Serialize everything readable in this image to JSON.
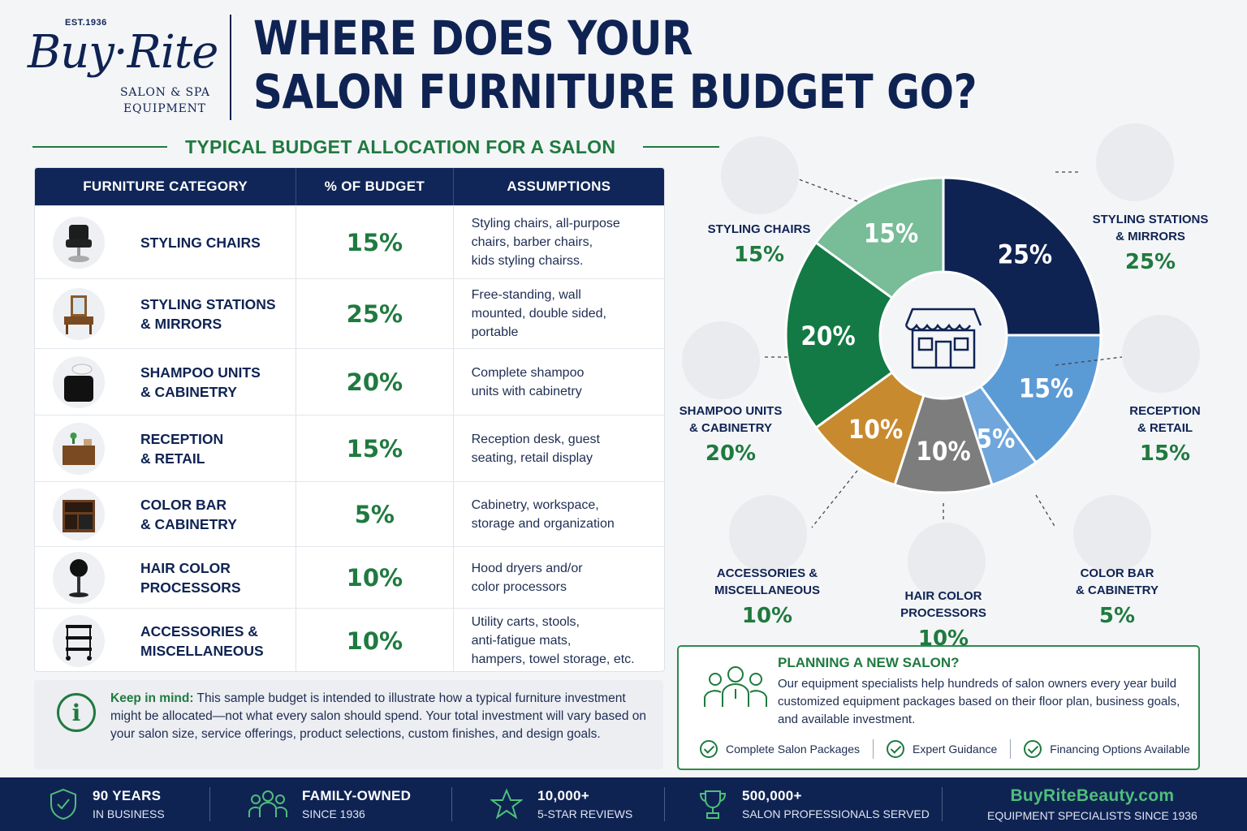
{
  "logo": {
    "est": "EST.1936",
    "brand": "Buy·Rite",
    "line1": "SALON & SPA",
    "line2": "EQUIPMENT"
  },
  "headline": {
    "line1": "WHERE DOES YOUR",
    "line2": "SALON FURNITURE BUDGET GO?"
  },
  "subheading": "TYPICAL BUDGET ALLOCATION FOR A SALON",
  "table": {
    "headers": [
      "FURNITURE CATEGORY",
      "% OF BUDGET",
      "ASSUMPTIONS"
    ],
    "rows": [
      {
        "category": "STYLING CHAIRS",
        "percent": "15%",
        "assumptions": "Styling chairs, all-purpose\nchairs, barber chairs,\nkids styling chairss.",
        "icon": "styling-chair-icon"
      },
      {
        "category": "STYLING STATIONS\n& MIRRORS",
        "percent": "25%",
        "assumptions": "Free-standing, wall\nmounted, double sided,\nportable",
        "icon": "styling-station-icon"
      },
      {
        "category": "SHAMPOO UNITS\n& CABINETRY",
        "percent": "20%",
        "assumptions": "Complete shampoo\nunits with cabinetry",
        "icon": "shampoo-unit-icon"
      },
      {
        "category": "RECEPTION\n& RETAIL",
        "percent": "15%",
        "assumptions": "Reception desk, guest\nseating, retail display",
        "icon": "reception-desk-icon"
      },
      {
        "category": "COLOR BAR\n& CABINETRY",
        "percent": "5%",
        "assumptions": "Cabinetry, workspace,\nstorage and organization",
        "icon": "color-bar-icon"
      },
      {
        "category": "HAIR COLOR\nPROCESSORS",
        "percent": "10%",
        "assumptions": "Hood dryers and/or\ncolor processors",
        "icon": "hood-dryer-icon"
      },
      {
        "category": "ACCESSORIES &\nMISCELLANEOUS",
        "percent": "10%",
        "assumptions": "Utility carts, stools,\nanti-fatigue mats,\nhampers, towel storage, etc.",
        "icon": "utility-cart-icon"
      }
    ]
  },
  "note": {
    "lead": "Keep in mind:",
    "text": " This sample budget is intended to illustrate how a typical furniture investment might be allocated—not what every salon should spend. Your total investment will vary based on your salon size, service offerings, product selections, custom finishes, and design goals."
  },
  "chart_data": {
    "type": "pie",
    "center_icon": "storefront-icon",
    "slices": [
      {
        "label": "STYLING STATIONS\n& MIRRORS",
        "value": 25,
        "display": "25%",
        "color": "#0f2353"
      },
      {
        "label": "RECEPTION\n& RETAIL",
        "value": 15,
        "display": "15%",
        "color": "#5b9bd5"
      },
      {
        "label": "COLOR BAR\n& CABINETRY",
        "value": 5,
        "display": "5%",
        "color": "#6fa6dc"
      },
      {
        "label": "HAIR COLOR\nPROCESSORS",
        "value": 10,
        "display": "10%",
        "color": "#7d7d7d"
      },
      {
        "label": "ACCESSORIES &\nMISCELLANEOUS",
        "value": 10,
        "display": "10%",
        "color": "#c88a2e"
      },
      {
        "label": "SHAMPOO UNITS\n& CABINETRY",
        "value": 20,
        "display": "20%",
        "color": "#137a45"
      },
      {
        "label": "STYLING CHAIRS",
        "value": 15,
        "display": "15%",
        "color": "#78bc98"
      }
    ]
  },
  "planning": {
    "title": "PLANNING A NEW SALON?",
    "body": "Our equipment specialists help hundreds of salon owners every year build customized equipment packages based on their floor plan, business goals, and available investment.",
    "features": [
      "Complete Salon Packages",
      "Expert Guidance",
      "Financing Options Available"
    ]
  },
  "footer": [
    {
      "l1": "90 YEARS",
      "l2": "IN BUSINESS",
      "icon": "shield-check-icon"
    },
    {
      "l1": "FAMILY-OWNED",
      "l2": "SINCE 1936",
      "icon": "family-icon"
    },
    {
      "l1": "10,000+",
      "l2": "5-STAR REVIEWS",
      "icon": "star-icon"
    },
    {
      "l1": "500,000+",
      "l2": "SALON PROFESSIONALS SERVED",
      "icon": "trophy-icon"
    },
    {
      "l1": "BuyRiteBeauty.com",
      "l2": "EQUIPMENT SPECIALISTS SINCE 1936"
    }
  ],
  "colors": {
    "navy": "#0f2353",
    "green": "#1f7a3f"
  }
}
